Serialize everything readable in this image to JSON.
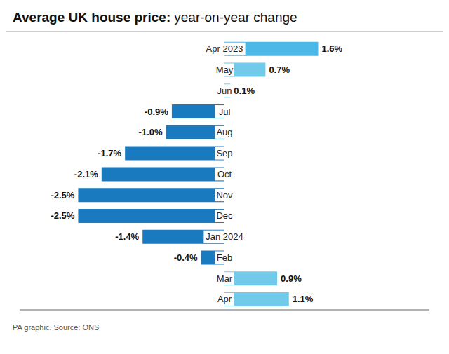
{
  "chart_data": {
    "type": "bar",
    "orientation": "horizontal",
    "title": "Average UK house price:",
    "subtitle": "year-on-year change",
    "annotations": [
      "PA graphic. Source: ONS"
    ],
    "categories": [
      "Apr 2023",
      "May",
      "Jun",
      "Jul",
      "Aug",
      "Sep",
      "Oct",
      "Nov",
      "Dec",
      "Jan 2024",
      "Feb",
      "Mar",
      "Apr"
    ],
    "values": [
      1.6,
      0.7,
      0.1,
      -0.9,
      -1.0,
      -1.7,
      -2.1,
      -2.5,
      -2.5,
      -1.4,
      -0.4,
      0.9,
      1.1
    ],
    "value_labels": [
      "1.6%",
      "0.7%",
      "0.1%",
      "-0.9%",
      "-1.0%",
      "-1.7%",
      "-2.1%",
      "-2.5%",
      "-2.5%",
      "-1.4%",
      "-0.4%",
      "0.9%",
      "1.1%"
    ],
    "colors": [
      "#4bb8e8",
      "#72caea",
      "#72caea",
      "#1a7abf",
      "#1a7abf",
      "#1a7abf",
      "#1a7abf",
      "#1a7abf",
      "#1a7abf",
      "#1a7abf",
      "#1a7abf",
      "#72caea",
      "#72caea"
    ],
    "xlim": [
      -3.5,
      3.5
    ],
    "data_labels": true,
    "tick_labels": "y",
    "grid": false
  }
}
